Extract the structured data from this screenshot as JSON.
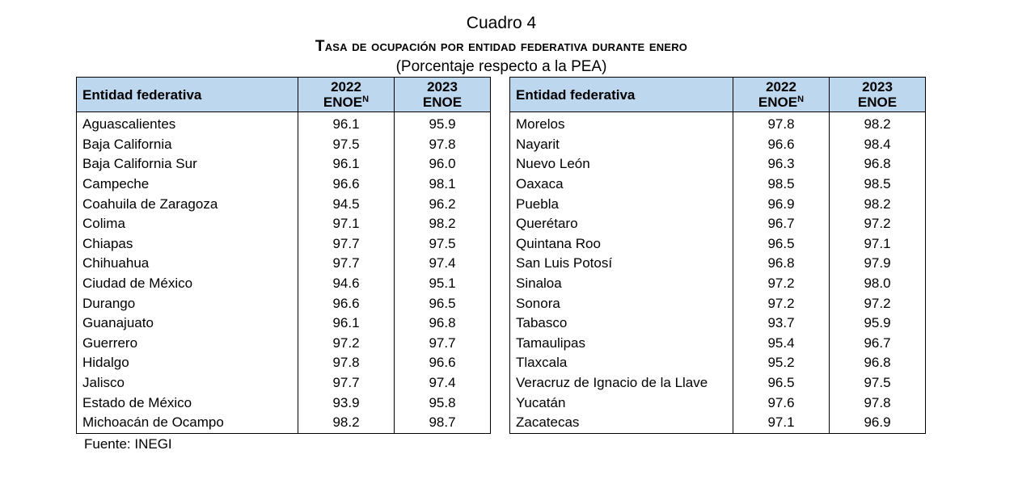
{
  "caption": "Cuadro 4",
  "title": "Tasa de ocupación por entidad federativa durante enero",
  "subtitle": "(Porcentaje respecto a la PEA)",
  "headers": {
    "entity": "Entidad federativa",
    "y2022_year": "2022",
    "y2022_survey": "ENOE",
    "y2022_sup": "N",
    "y2023_year": "2023",
    "y2023_survey": "ENOE"
  },
  "left_rows": [
    {
      "entity": "Aguascalientes",
      "v2022": "96.1",
      "v2023": "95.9"
    },
    {
      "entity": "Baja California",
      "v2022": "97.5",
      "v2023": "97.8"
    },
    {
      "entity": "Baja California Sur",
      "v2022": "96.1",
      "v2023": "96.0"
    },
    {
      "entity": "Campeche",
      "v2022": "96.6",
      "v2023": "98.1"
    },
    {
      "entity": "Coahuila de Zaragoza",
      "v2022": "94.5",
      "v2023": "96.2"
    },
    {
      "entity": "Colima",
      "v2022": "97.1",
      "v2023": "98.2"
    },
    {
      "entity": "Chiapas",
      "v2022": "97.7",
      "v2023": "97.5"
    },
    {
      "entity": "Chihuahua",
      "v2022": "97.7",
      "v2023": "97.4"
    },
    {
      "entity": "Ciudad de México",
      "v2022": "94.6",
      "v2023": "95.1"
    },
    {
      "entity": "Durango",
      "v2022": "96.6",
      "v2023": "96.5"
    },
    {
      "entity": "Guanajuato",
      "v2022": "96.1",
      "v2023": "96.8"
    },
    {
      "entity": "Guerrero",
      "v2022": "97.2",
      "v2023": "97.7"
    },
    {
      "entity": "Hidalgo",
      "v2022": "97.8",
      "v2023": "96.6"
    },
    {
      "entity": "Jalisco",
      "v2022": "97.7",
      "v2023": "97.4"
    },
    {
      "entity": "Estado de México",
      "v2022": "93.9",
      "v2023": "95.8"
    },
    {
      "entity": "Michoacán de Ocampo",
      "v2022": "98.2",
      "v2023": "98.7"
    }
  ],
  "right_rows": [
    {
      "entity": "Morelos",
      "v2022": "97.8",
      "v2023": "98.2"
    },
    {
      "entity": "Nayarit",
      "v2022": "96.6",
      "v2023": "98.4"
    },
    {
      "entity": "Nuevo León",
      "v2022": "96.3",
      "v2023": "96.8"
    },
    {
      "entity": "Oaxaca",
      "v2022": "98.5",
      "v2023": "98.5"
    },
    {
      "entity": "Puebla",
      "v2022": "96.9",
      "v2023": "98.2"
    },
    {
      "entity": "Querétaro",
      "v2022": "96.7",
      "v2023": "97.2"
    },
    {
      "entity": "Quintana Roo",
      "v2022": "96.5",
      "v2023": "97.1"
    },
    {
      "entity": "San Luis Potosí",
      "v2022": "96.8",
      "v2023": "97.9"
    },
    {
      "entity": "Sinaloa",
      "v2022": "97.2",
      "v2023": "98.0"
    },
    {
      "entity": "Sonora",
      "v2022": "97.2",
      "v2023": "97.2"
    },
    {
      "entity": "Tabasco",
      "v2022": "93.7",
      "v2023": "95.9"
    },
    {
      "entity": "Tamaulipas",
      "v2022": "95.4",
      "v2023": "96.7"
    },
    {
      "entity": "Tlaxcala",
      "v2022": "95.2",
      "v2023": "96.8"
    },
    {
      "entity": "Veracruz de Ignacio de la Llave",
      "v2022": "96.5",
      "v2023": "97.5"
    },
    {
      "entity": "Yucatán",
      "v2022": "97.6",
      "v2023": "97.8"
    },
    {
      "entity": "Zacatecas",
      "v2022": "97.1",
      "v2023": "96.9"
    }
  ],
  "source": "Fuente: INEGI",
  "colors": {
    "header_background": "#bdd7ee"
  }
}
